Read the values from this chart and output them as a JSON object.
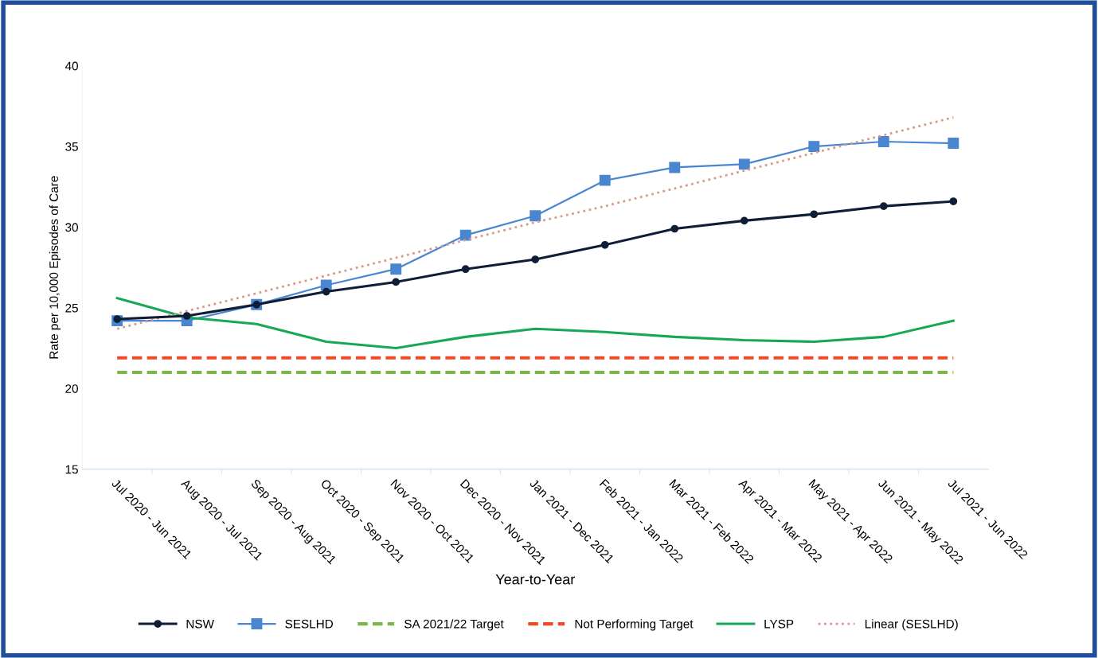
{
  "chart_data": {
    "type": "line",
    "xlabel": "Year-to-Year",
    "ylabel": "Rate per 10,000 Episodes of Care",
    "categories": [
      "Jul 2020 - Jun 2021",
      "Aug 2020 - Jul 2021",
      "Sep 2020 - Aug 2021",
      "Oct 2020 - Sep 2021",
      "Nov 2020 - Oct 2021",
      "Dec 2020 - Nov 2021",
      "Jan 2021 - Dec 2021",
      "Feb 2021 - Jan 2022",
      "Mar 2021 - Feb 2022",
      "Apr 2021 - Mar 2022",
      "May 2021 - Apr 2022",
      "Jun 2021 - May 2022",
      "Jul 2021 - Jun 2022"
    ],
    "series": [
      {
        "name": "NSW",
        "color": "#0f1e36",
        "marker": "circle",
        "line_style": "solid",
        "values": [
          24.3,
          24.5,
          25.2,
          26.0,
          26.6,
          27.4,
          28.0,
          28.9,
          29.9,
          30.4,
          30.8,
          31.3,
          31.6
        ]
      },
      {
        "name": "SESLHD",
        "color": "#4a86d0",
        "marker": "square",
        "line_style": "solid",
        "values": [
          24.2,
          24.2,
          25.2,
          26.4,
          27.4,
          29.5,
          30.7,
          32.9,
          33.7,
          33.9,
          35.0,
          35.3,
          35.2
        ]
      },
      {
        "name": "SA 2021/22 Target",
        "color": "#7ab648",
        "marker": "none",
        "line_style": "dashed",
        "values": [
          21,
          21,
          21,
          21,
          21,
          21,
          21,
          21,
          21,
          21,
          21,
          21,
          21
        ]
      },
      {
        "name": "Not Performing Target",
        "color": "#f04a24",
        "marker": "none",
        "line_style": "dashed",
        "values": [
          21.9,
          21.9,
          21.9,
          21.9,
          21.9,
          21.9,
          21.9,
          21.9,
          21.9,
          21.9,
          21.9,
          21.9,
          21.9
        ]
      },
      {
        "name": "LYSP",
        "color": "#17a855",
        "marker": "none",
        "line_style": "solid",
        "values": [
          25.6,
          24.4,
          24.0,
          22.9,
          22.5,
          23.2,
          23.7,
          23.5,
          23.2,
          23.0,
          22.9,
          23.2,
          24.2
        ]
      },
      {
        "name": "Linear (SESLHD)",
        "color": "#d99a8a",
        "marker": "none",
        "line_style": "dotted",
        "values": [
          23.7,
          24.8,
          25.9,
          27.0,
          28.1,
          29.2,
          30.3,
          31.3,
          32.4,
          33.5,
          34.6,
          35.7,
          36.8
        ]
      }
    ],
    "ylim": [
      15,
      40
    ],
    "yticks": [
      15,
      20,
      25,
      30,
      35,
      40
    ],
    "grid": false,
    "legend": "bottom"
  }
}
